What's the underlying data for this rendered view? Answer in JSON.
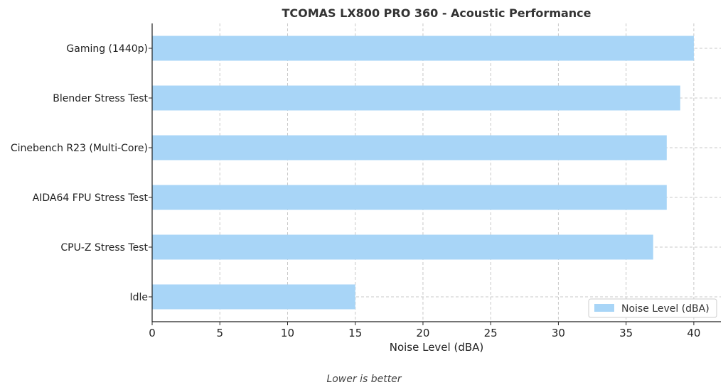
{
  "chart_data": {
    "type": "bar",
    "orientation": "horizontal",
    "title": "TCOMAS LX800 PRO 360 - Acoustic Performance",
    "categories": [
      "Idle",
      "CPU-Z Stress Test",
      "AIDA64 FPU Stress Test",
      "Cinebench R23 (Multi-Core)",
      "Blender Stress Test",
      "Gaming (1440p)"
    ],
    "series": [
      {
        "name": "Noise Level (dBA)",
        "values": [
          15,
          37,
          38,
          38,
          39,
          40
        ],
        "color": "#a8d5f7"
      }
    ],
    "xlabel": "Noise Level (dBA)",
    "ylabel": "",
    "xlim": [
      0,
      42
    ],
    "xticks": [
      0,
      5,
      10,
      15,
      20,
      25,
      30,
      35,
      40
    ],
    "grid": true,
    "legend_position": "bottom-right",
    "footnote": "Lower is better"
  }
}
